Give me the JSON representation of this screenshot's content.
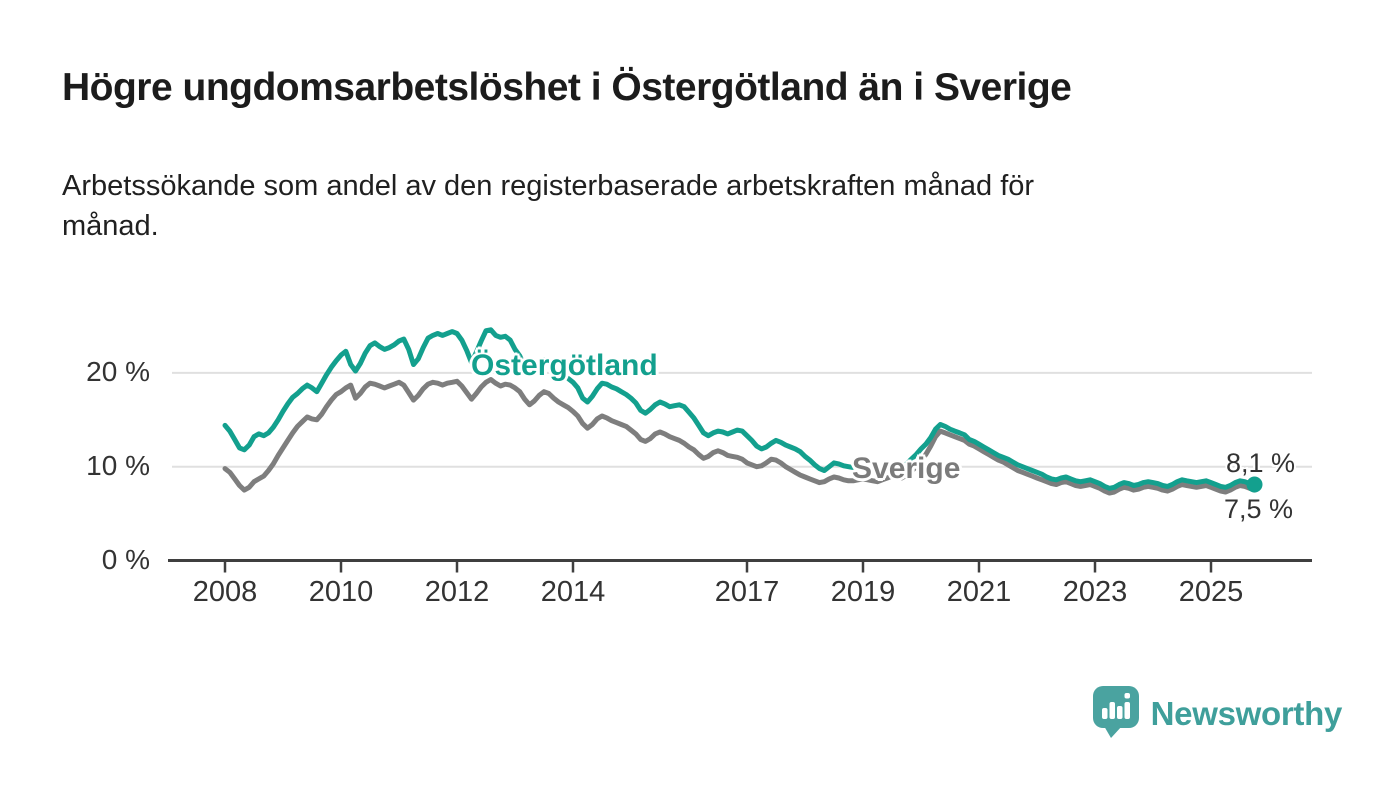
{
  "header": {
    "title": "Högre ungdomsarbetslöshet i Östergötland än i Sverige",
    "subtitle_lines": [
      "Arbetssökande som andel av den registerbaserade arbetskraften månad för",
      "månad."
    ]
  },
  "footer": {
    "brand": "Newsworthy",
    "logo_icon": "bar-chart-speech-bubble-icon",
    "brand_color": "#3f9f9b",
    "logo_bubble_color": "#4aa3a0"
  },
  "chart_data": {
    "type": "line",
    "title": "Högre ungdomsarbetslöshet i Östergötland än i Sverige",
    "subtitle": "Arbetssökande som andel av den registerbaserade arbetskraften månad för månad.",
    "x_unit": "month",
    "x_start": "2008-01",
    "x_end": "2025-10",
    "x_tick_years": [
      2008,
      2010,
      2012,
      2014,
      2017,
      2019,
      2021,
      2023,
      2025
    ],
    "x_tick_labels": [
      "2008",
      "2010",
      "2012",
      "2014",
      "2017",
      "2019",
      "2021",
      "2023",
      "2025"
    ],
    "y_ticks": [
      0,
      10,
      20
    ],
    "y_tick_labels": [
      "0 %",
      "10 %",
      "20 %"
    ],
    "ylim": [
      0,
      26
    ],
    "grid": "horizontal",
    "grid_color": "#e0e0e0",
    "axis_color": "#3f3f3f",
    "legend_position": "inline-labels",
    "series": [
      {
        "name": "Östergötland",
        "color": "#13a08e",
        "end_value": 8.1,
        "end_label": "8,1 %",
        "values": [
          14.4,
          13.8,
          12.9,
          12.0,
          11.8,
          12.3,
          13.2,
          13.5,
          13.3,
          13.6,
          14.2,
          15.0,
          15.9,
          16.7,
          17.4,
          17.8,
          18.3,
          18.7,
          18.4,
          18.0,
          18.9,
          19.8,
          20.6,
          21.3,
          21.9,
          22.3,
          20.9,
          20.2,
          21.0,
          22.1,
          22.9,
          23.2,
          22.8,
          22.5,
          22.7,
          23.0,
          23.4,
          23.6,
          22.5,
          20.9,
          21.5,
          22.7,
          23.7,
          24.0,
          24.2,
          24.0,
          24.2,
          24.4,
          24.2,
          23.5,
          22.4,
          21.1,
          22.2,
          23.4,
          24.5,
          24.6,
          24.0,
          23.8,
          23.9,
          23.5,
          22.5,
          21.8,
          20.6,
          19.8,
          20.3,
          21.0,
          21.4,
          21.1,
          20.5,
          20.0,
          19.7,
          19.4,
          19.0,
          18.4,
          17.3,
          16.9,
          17.5,
          18.3,
          18.9,
          18.8,
          18.5,
          18.3,
          18.0,
          17.7,
          17.3,
          16.8,
          16.0,
          15.7,
          16.1,
          16.6,
          16.9,
          16.7,
          16.4,
          16.5,
          16.6,
          16.4,
          15.8,
          15.2,
          14.4,
          13.6,
          13.3,
          13.6,
          13.8,
          13.7,
          13.5,
          13.7,
          13.9,
          13.8,
          13.3,
          12.8,
          12.2,
          11.9,
          12.1,
          12.5,
          12.8,
          12.6,
          12.3,
          12.1,
          11.9,
          11.6,
          11.1,
          10.7,
          10.2,
          9.8,
          9.6,
          10.0,
          10.4,
          10.3,
          10.1,
          10.0,
          9.9,
          9.8,
          9.9,
          9.8,
          9.6,
          9.5,
          9.7,
          10.0,
          10.2,
          10.0,
          9.9,
          10.3,
          10.8,
          11.3,
          11.9,
          12.4,
          13.1,
          14.0,
          14.5,
          14.3,
          14.0,
          13.8,
          13.6,
          13.4,
          12.9,
          12.7,
          12.4,
          12.1,
          11.8,
          11.5,
          11.2,
          11.0,
          10.8,
          10.5,
          10.2,
          10.0,
          9.8,
          9.6,
          9.4,
          9.2,
          8.9,
          8.7,
          8.6,
          8.8,
          8.9,
          8.7,
          8.5,
          8.4,
          8.5,
          8.6,
          8.4,
          8.2,
          7.9,
          7.7,
          7.8,
          8.1,
          8.3,
          8.2,
          8.0,
          8.1,
          8.3,
          8.4,
          8.3,
          8.2,
          8.0,
          7.9,
          8.1,
          8.4,
          8.6,
          8.5,
          8.4,
          8.3,
          8.4,
          8.5,
          8.3,
          8.1,
          7.9,
          7.8,
          8.0,
          8.3,
          8.5,
          8.4,
          8.2,
          8.1
        ]
      },
      {
        "name": "Sverige",
        "color": "#7e7e7e",
        "end_value": 7.5,
        "end_label": "7,5 %",
        "values": [
          9.8,
          9.4,
          8.7,
          8.0,
          7.5,
          7.8,
          8.4,
          8.7,
          9.0,
          9.6,
          10.3,
          11.2,
          12.0,
          12.8,
          13.6,
          14.3,
          14.8,
          15.3,
          15.1,
          15.0,
          15.6,
          16.4,
          17.1,
          17.7,
          18.0,
          18.4,
          18.7,
          17.3,
          17.8,
          18.5,
          18.9,
          18.8,
          18.6,
          18.4,
          18.6,
          18.8,
          19.0,
          18.7,
          17.9,
          17.1,
          17.6,
          18.3,
          18.8,
          19.0,
          18.9,
          18.7,
          18.9,
          19.0,
          19.1,
          18.6,
          17.9,
          17.2,
          17.8,
          18.5,
          19.0,
          19.3,
          18.9,
          18.6,
          18.8,
          18.7,
          18.4,
          18.0,
          17.2,
          16.6,
          17.0,
          17.6,
          18.0,
          17.8,
          17.3,
          16.9,
          16.6,
          16.3,
          15.9,
          15.4,
          14.6,
          14.1,
          14.5,
          15.1,
          15.4,
          15.2,
          14.9,
          14.7,
          14.5,
          14.3,
          13.9,
          13.5,
          12.9,
          12.7,
          13.0,
          13.5,
          13.7,
          13.5,
          13.2,
          13.0,
          12.8,
          12.5,
          12.1,
          11.8,
          11.3,
          10.9,
          11.1,
          11.5,
          11.7,
          11.5,
          11.2,
          11.1,
          11.0,
          10.8,
          10.4,
          10.2,
          10.0,
          10.1,
          10.4,
          10.8,
          10.7,
          10.4,
          10.0,
          9.7,
          9.4,
          9.1,
          8.9,
          8.7,
          8.5,
          8.3,
          8.4,
          8.7,
          8.9,
          8.8,
          8.6,
          8.5,
          8.5,
          8.6,
          8.7,
          8.6,
          8.5,
          8.4,
          8.6,
          8.8,
          9.0,
          8.9,
          8.8,
          9.1,
          9.5,
          10.0,
          10.7,
          11.3,
          12.2,
          13.2,
          13.8,
          13.6,
          13.4,
          13.2,
          13.0,
          12.8,
          12.4,
          12.2,
          11.9,
          11.6,
          11.3,
          11.0,
          10.7,
          10.5,
          10.2,
          9.9,
          9.6,
          9.4,
          9.2,
          9.0,
          8.8,
          8.6,
          8.4,
          8.2,
          8.1,
          8.3,
          8.4,
          8.2,
          8.0,
          7.9,
          8.0,
          8.1,
          7.9,
          7.7,
          7.4,
          7.2,
          7.3,
          7.6,
          7.8,
          7.7,
          7.5,
          7.6,
          7.8,
          7.9,
          7.8,
          7.7,
          7.5,
          7.4,
          7.6,
          7.9,
          8.1,
          8.0,
          7.9,
          7.8,
          7.9,
          8.0,
          7.8,
          7.6,
          7.4,
          7.3,
          7.5,
          7.8,
          8.0,
          7.9,
          7.7,
          7.5
        ]
      }
    ]
  }
}
